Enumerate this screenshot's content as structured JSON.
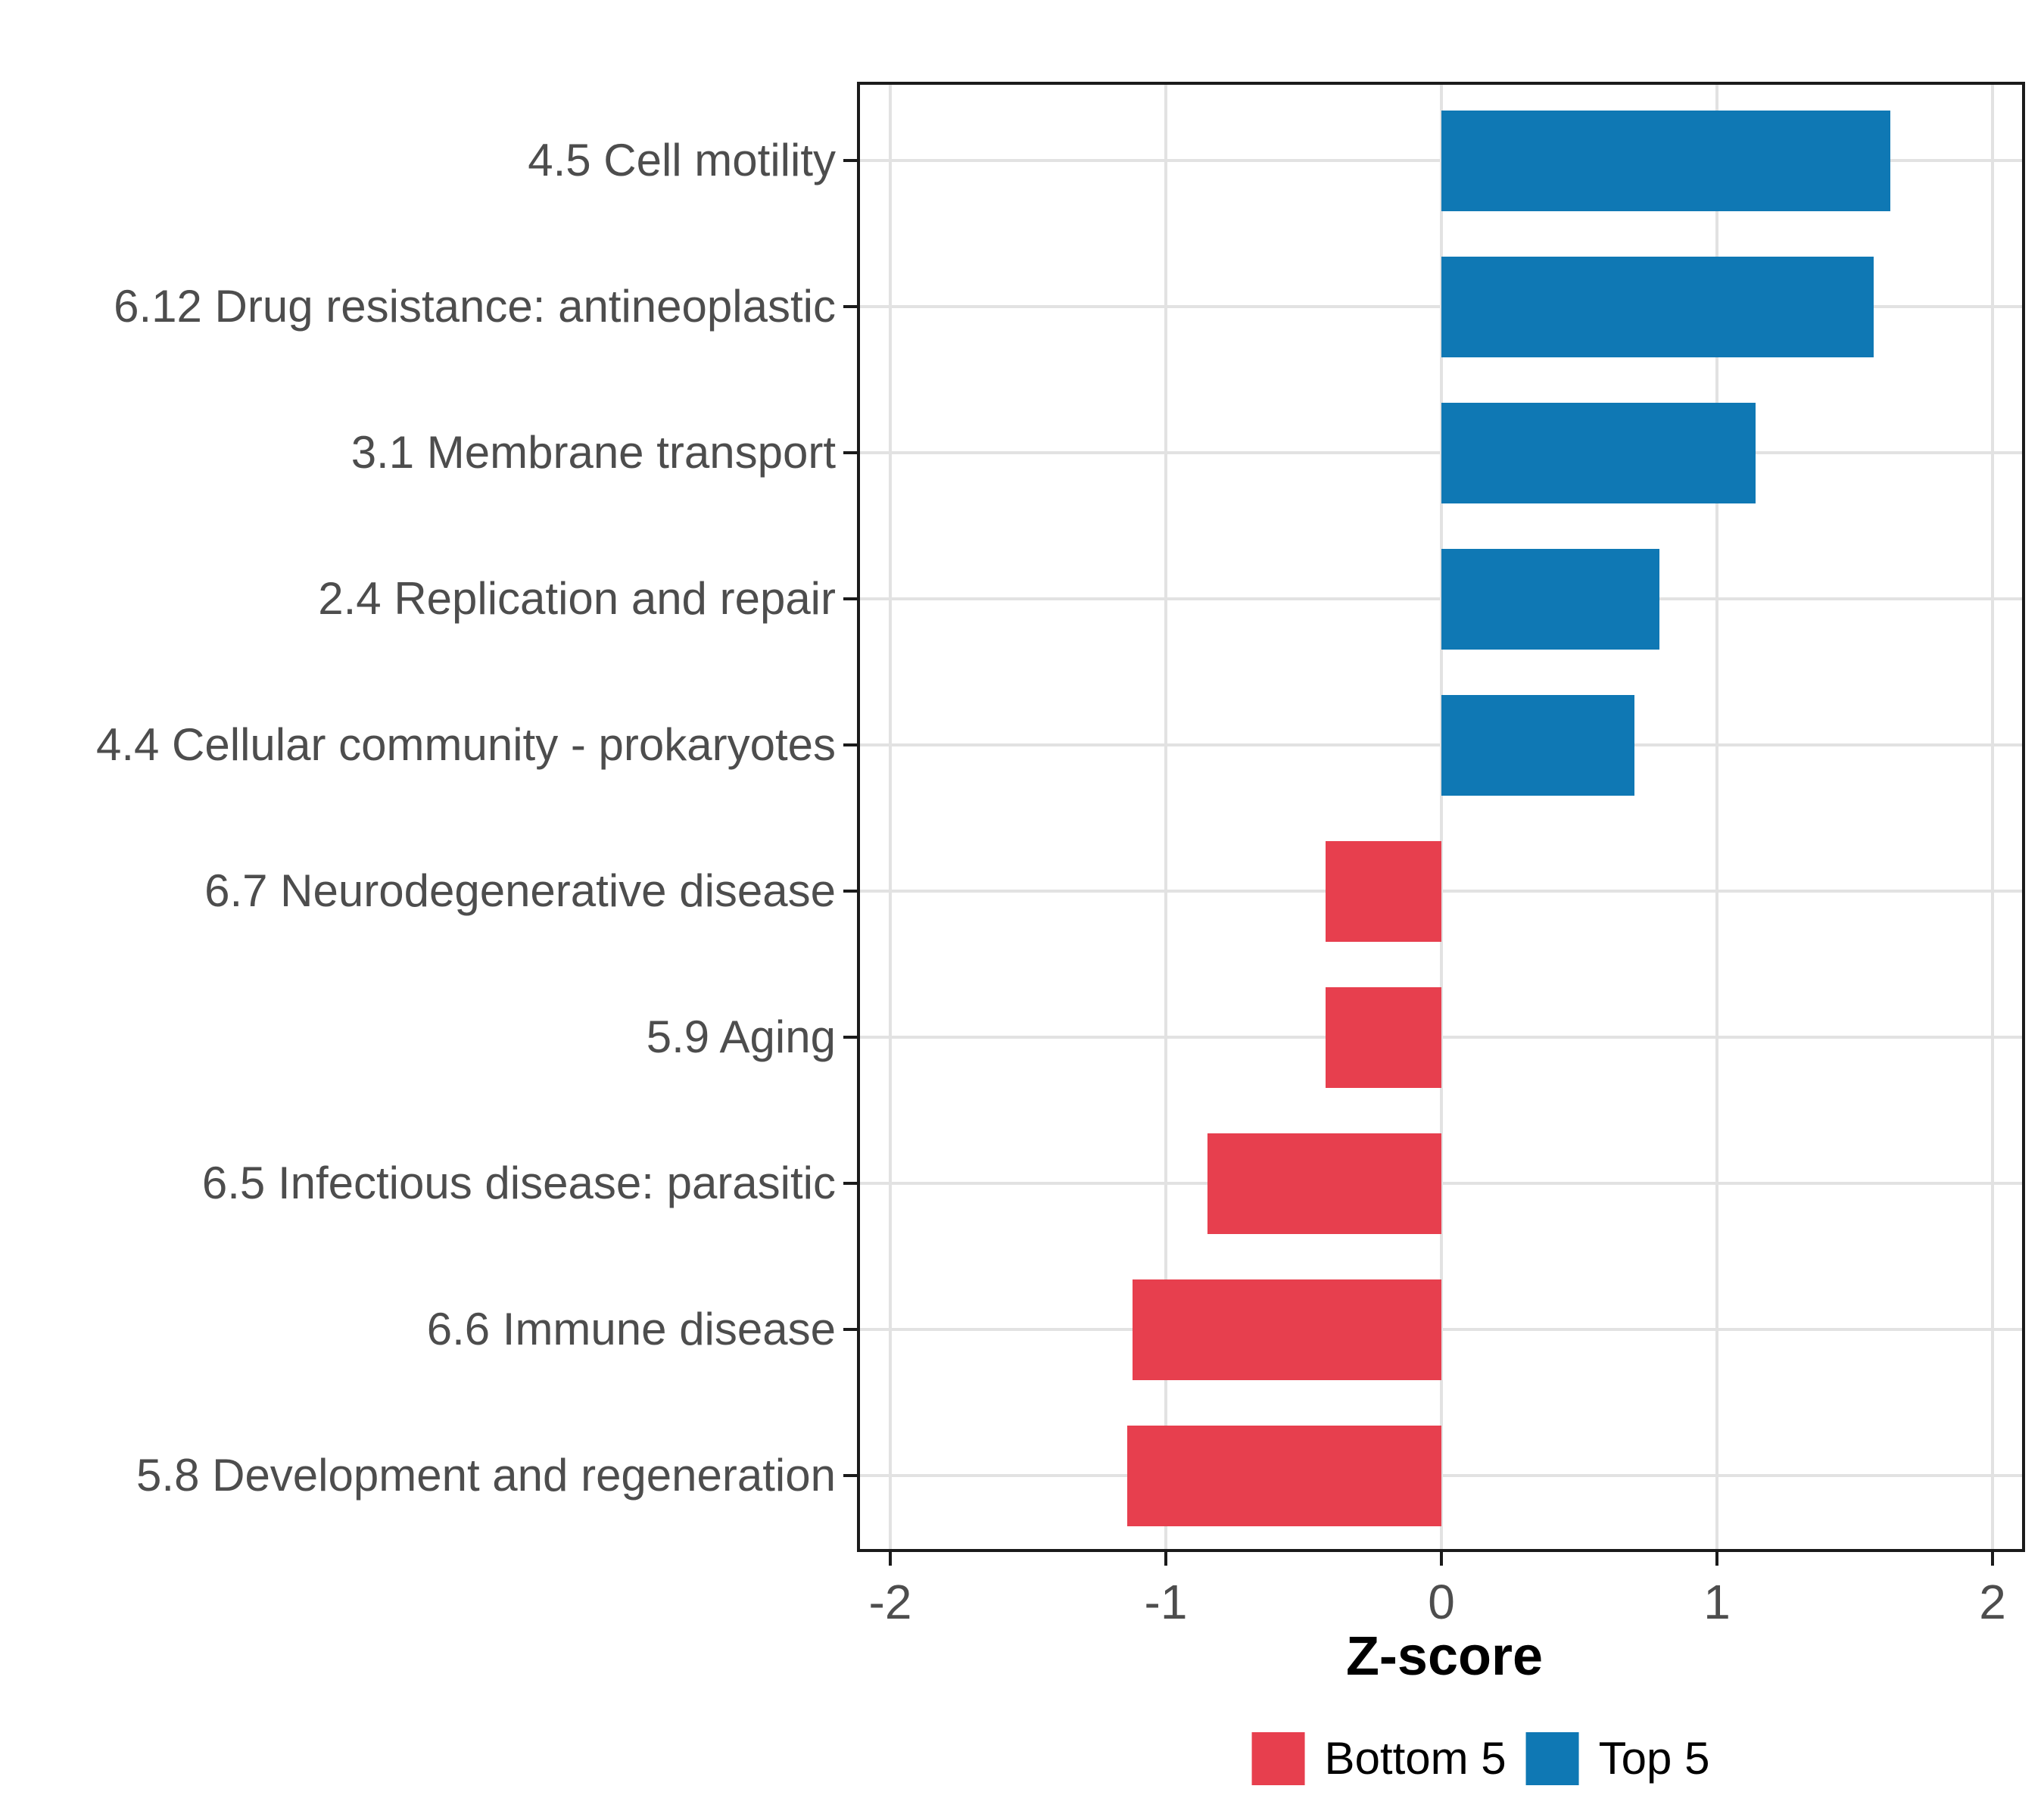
{
  "chart_data": {
    "type": "bar",
    "orientation": "horizontal",
    "title": "",
    "xlabel": "Z-score",
    "ylabel": "",
    "xlim": [
      -2.12,
      2.12
    ],
    "x_ticks": [
      "-2",
      "-1",
      "0",
      "1",
      "2"
    ],
    "x_tick_values": [
      -2,
      -1,
      0,
      1,
      2
    ],
    "grid": "on",
    "legend_position": "bottom",
    "categories": [
      "4.5 Cell motility",
      "6.12 Drug resistance: antineoplastic",
      "3.1 Membrane transport",
      "2.4 Replication and repair",
      "4.4 Cellular community - prokaryotes",
      "6.7 Neurodegenerative disease",
      "5.9 Aging",
      "6.5 Infectious disease: parasitic",
      "6.6 Immune disease",
      "5.8 Development and regeneration"
    ],
    "series": [
      {
        "name": "Top 5",
        "color": "#0f78b4",
        "values": [
          1.63,
          1.57,
          1.14,
          0.79,
          0.7,
          null,
          null,
          null,
          null,
          null
        ]
      },
      {
        "name": "Bottom 5",
        "color": "#e73f4e",
        "values": [
          null,
          null,
          null,
          null,
          null,
          -0.42,
          -0.42,
          -0.85,
          -1.12,
          -1.14
        ]
      }
    ],
    "bars": [
      {
        "label": "4.5 Cell motility",
        "value": 1.63,
        "group": "Top 5"
      },
      {
        "label": "6.12 Drug resistance: antineoplastic",
        "value": 1.57,
        "group": "Top 5"
      },
      {
        "label": "3.1 Membrane transport",
        "value": 1.14,
        "group": "Top 5"
      },
      {
        "label": "2.4 Replication and repair",
        "value": 0.79,
        "group": "Top 5"
      },
      {
        "label": "4.4 Cellular community - prokaryotes",
        "value": 0.7,
        "group": "Top 5"
      },
      {
        "label": "6.7 Neurodegenerative disease",
        "value": -0.42,
        "group": "Bottom 5"
      },
      {
        "label": "5.9 Aging",
        "value": -0.42,
        "group": "Bottom 5"
      },
      {
        "label": "6.5 Infectious disease: parasitic",
        "value": -0.85,
        "group": "Bottom 5"
      },
      {
        "label": "6.6 Immune disease",
        "value": -1.12,
        "group": "Bottom 5"
      },
      {
        "label": "5.8 Development and regeneration",
        "value": -1.14,
        "group": "Bottom 5"
      }
    ],
    "legend": [
      {
        "label": "Bottom 5",
        "color": "#e73f4e"
      },
      {
        "label": "Top 5",
        "color": "#0f78b4"
      }
    ],
    "colors": {
      "top5_blue": "#0f78b4",
      "bottom5_red": "#e73f4e",
      "gridline": "#e2e2e2",
      "axis_text": "#4d4d4d",
      "panel_border": "#1b1b1b",
      "background": "#ffffff"
    }
  }
}
